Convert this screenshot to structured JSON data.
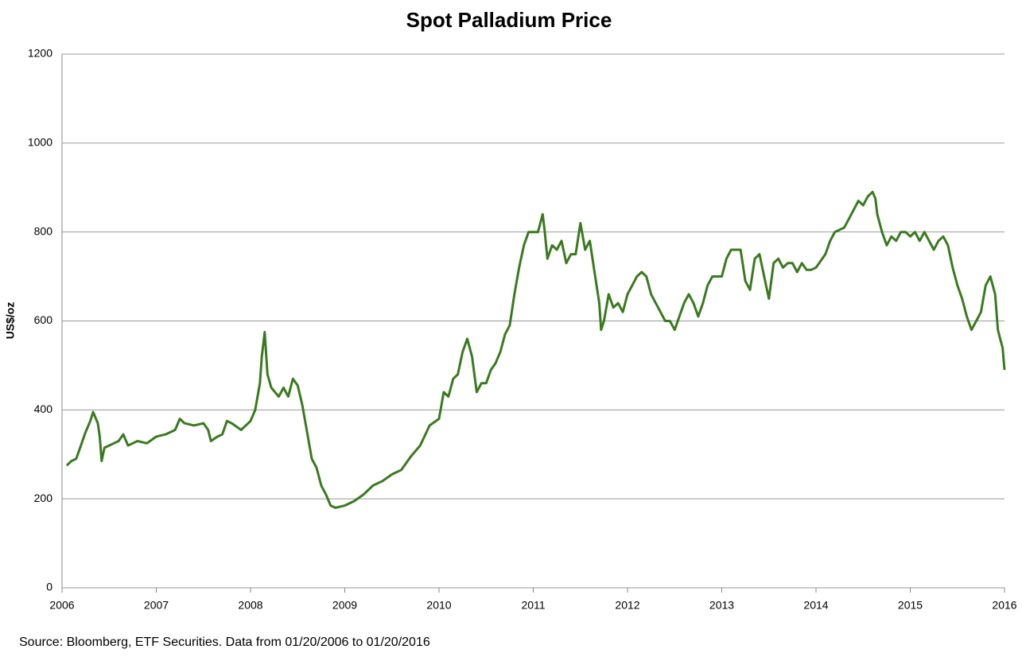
{
  "chart_data": {
    "type": "line",
    "title": "Spot Palladium Price",
    "ylabel": "US$/oz",
    "note": "Source: Bloomberg, ETF Securities. Data from 01/20/2006 to 01/20/2016",
    "color": "#3a7a1f",
    "grid": true,
    "xlim": [
      2006,
      2016
    ],
    "xticks": [
      2006,
      2007,
      2008,
      2009,
      2010,
      2011,
      2012,
      2013,
      2014,
      2015,
      2016
    ],
    "ylim": [
      0,
      1200
    ],
    "yticks": [
      0,
      200,
      400,
      600,
      800,
      1000,
      1200
    ],
    "x": [
      2006.05,
      2006.1,
      2006.15,
      2006.2,
      2006.25,
      2006.3,
      2006.33,
      2006.38,
      2006.4,
      2006.42,
      2006.45,
      2006.5,
      2006.55,
      2006.6,
      2006.65,
      2006.7,
      2006.75,
      2006.8,
      2006.9,
      2007.0,
      2007.1,
      2007.2,
      2007.25,
      2007.3,
      2007.4,
      2007.5,
      2007.55,
      2007.58,
      2007.65,
      2007.7,
      2007.75,
      2007.8,
      2007.9,
      2008.0,
      2008.05,
      2008.1,
      2008.12,
      2008.15,
      2008.18,
      2008.22,
      2008.3,
      2008.35,
      2008.4,
      2008.45,
      2008.5,
      2008.55,
      2008.6,
      2008.65,
      2008.7,
      2008.75,
      2008.8,
      2008.85,
      2008.9,
      2009.0,
      2009.1,
      2009.2,
      2009.3,
      2009.4,
      2009.5,
      2009.6,
      2009.7,
      2009.8,
      2009.9,
      2010.0,
      2010.05,
      2010.1,
      2010.15,
      2010.2,
      2010.25,
      2010.3,
      2010.35,
      2010.4,
      2010.45,
      2010.5,
      2010.55,
      2010.6,
      2010.65,
      2010.7,
      2010.75,
      2010.8,
      2010.85,
      2010.9,
      2010.95,
      2011.05,
      2011.1,
      2011.12,
      2011.15,
      2011.2,
      2011.25,
      2011.3,
      2011.35,
      2011.4,
      2011.45,
      2011.5,
      2011.55,
      2011.6,
      2011.65,
      2011.7,
      2011.72,
      2011.75,
      2011.8,
      2011.85,
      2011.9,
      2011.95,
      2012.0,
      2012.05,
      2012.1,
      2012.15,
      2012.2,
      2012.25,
      2012.3,
      2012.35,
      2012.4,
      2012.45,
      2012.5,
      2012.55,
      2012.6,
      2012.65,
      2012.7,
      2012.75,
      2012.8,
      2012.85,
      2012.9,
      2012.95,
      2013.0,
      2013.05,
      2013.1,
      2013.15,
      2013.2,
      2013.25,
      2013.3,
      2013.35,
      2013.4,
      2013.45,
      2013.5,
      2013.55,
      2013.6,
      2013.65,
      2013.7,
      2013.75,
      2013.8,
      2013.85,
      2013.9,
      2013.95,
      2014.0,
      2014.05,
      2014.1,
      2014.15,
      2014.2,
      2014.3,
      2014.35,
      2014.4,
      2014.45,
      2014.5,
      2014.55,
      2014.6,
      2014.63,
      2014.65,
      2014.7,
      2014.75,
      2014.8,
      2014.85,
      2014.9,
      2014.95,
      2015.0,
      2015.05,
      2015.1,
      2015.15,
      2015.2,
      2015.25,
      2015.3,
      2015.35,
      2015.4,
      2015.45,
      2015.5,
      2015.55,
      2015.6,
      2015.65,
      2015.7,
      2015.75,
      2015.8,
      2015.85,
      2015.9,
      2015.93,
      2015.96,
      2015.98,
      2016.0
    ],
    "values": [
      275,
      285,
      290,
      320,
      350,
      375,
      395,
      370,
      340,
      285,
      315,
      320,
      325,
      330,
      345,
      320,
      325,
      330,
      325,
      340,
      345,
      355,
      380,
      370,
      365,
      370,
      355,
      330,
      340,
      345,
      375,
      370,
      355,
      375,
      400,
      460,
      520,
      575,
      480,
      450,
      430,
      450,
      430,
      470,
      455,
      410,
      350,
      290,
      270,
      230,
      210,
      185,
      180,
      185,
      195,
      210,
      230,
      240,
      255,
      265,
      295,
      320,
      365,
      380,
      440,
      430,
      470,
      480,
      530,
      560,
      520,
      440,
      460,
      460,
      490,
      505,
      530,
      570,
      590,
      660,
      720,
      770,
      800,
      800,
      840,
      805,
      740,
      770,
      760,
      780,
      730,
      750,
      750,
      820,
      760,
      780,
      710,
      640,
      580,
      600,
      660,
      630,
      640,
      620,
      660,
      680,
      700,
      710,
      700,
      660,
      640,
      620,
      600,
      600,
      580,
      610,
      640,
      660,
      640,
      610,
      640,
      680,
      700,
      700,
      700,
      740,
      760,
      760,
      760,
      690,
      670,
      740,
      750,
      700,
      650,
      730,
      740,
      720,
      730,
      730,
      710,
      730,
      715,
      715,
      720,
      735,
      750,
      780,
      800,
      810,
      830,
      850,
      870,
      860,
      880,
      890,
      875,
      840,
      800,
      770,
      790,
      780,
      800,
      800,
      790,
      800,
      780,
      800,
      780,
      760,
      780,
      790,
      770,
      720,
      680,
      650,
      610,
      580,
      600,
      620,
      680,
      700,
      660,
      580,
      555,
      540,
      490
    ]
  }
}
